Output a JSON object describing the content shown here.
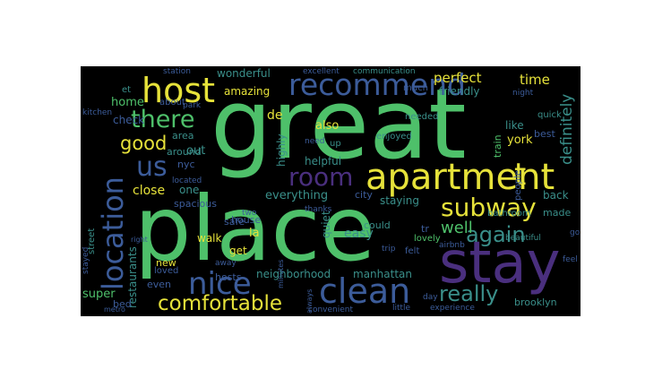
{
  "image": {
    "type": "word-cloud",
    "background": "#000000",
    "palette": [
      "#4ec06a",
      "#e6e23a",
      "#3c5c9a",
      "#4a2f7e",
      "#3a8f8a",
      "#6fbf6e"
    ],
    "words": [
      {
        "text": "great",
        "color": "#4ec06a"
      },
      {
        "text": "place",
        "color": "#4ec06a"
      },
      {
        "text": "stay",
        "color": "#4a2f7e"
      },
      {
        "text": "apartment",
        "color": "#e6e23a"
      },
      {
        "text": "host",
        "color": "#e6e23a"
      },
      {
        "text": "recommend",
        "color": "#3c5c9a"
      },
      {
        "text": "clean",
        "color": "#3c5c9a"
      },
      {
        "text": "location",
        "color": "#3c5c9a"
      },
      {
        "text": "nice",
        "color": "#3c5c9a"
      },
      {
        "text": "room",
        "color": "#4a2f7e"
      },
      {
        "text": "subway",
        "color": "#e6e23a"
      },
      {
        "text": "comfortable",
        "color": "#e6e23a"
      },
      {
        "text": "there",
        "color": "#4ec06a"
      },
      {
        "text": "really",
        "color": "#3a8f8a"
      },
      {
        "text": "again",
        "color": "#3a8f8a"
      },
      {
        "text": "us",
        "color": "#3c5c9a"
      },
      {
        "text": "good",
        "color": "#e6e23a"
      },
      {
        "text": "well",
        "color": "#4ec06a"
      },
      {
        "text": "definitely",
        "color": "#3a8f8a"
      },
      {
        "text": "perfect",
        "color": "#e6e23a"
      },
      {
        "text": "time",
        "color": "#e6e23a"
      },
      {
        "text": "home",
        "color": "#4ec06a"
      },
      {
        "text": "check",
        "color": "#3c5c9a"
      },
      {
        "text": "amazing",
        "color": "#e6e23a"
      },
      {
        "text": "wonderful",
        "color": "#3a8f8a"
      },
      {
        "text": "also",
        "color": "#e6e23a"
      },
      {
        "text": "highly",
        "color": "#3a8f8a"
      },
      {
        "text": "helpful",
        "color": "#3a8f8a"
      },
      {
        "text": "easy",
        "color": "#3a8f8a"
      },
      {
        "text": "everything",
        "color": "#3a8f8a"
      },
      {
        "text": "city",
        "color": "#3c5c9a"
      },
      {
        "text": "staying",
        "color": "#3a8f8a"
      },
      {
        "text": "close",
        "color": "#e6e23a"
      },
      {
        "text": "one",
        "color": "#3a8f8a"
      },
      {
        "text": "spacious",
        "color": "#3c5c9a"
      },
      {
        "text": "walk",
        "color": "#e6e23a"
      },
      {
        "text": "safe",
        "color": "#3c5c9a"
      },
      {
        "text": "house",
        "color": "#3c5c9a"
      },
      {
        "text": "la",
        "color": "#e6e23a"
      },
      {
        "text": "quiet",
        "color": "#3a8f8a"
      },
      {
        "text": "neighborhood",
        "color": "#3a8f8a"
      },
      {
        "text": "manhattan",
        "color": "#3a8f8a"
      },
      {
        "text": "brooklyn",
        "color": "#3a8f8a"
      },
      {
        "text": "super",
        "color": "#4ec06a"
      },
      {
        "text": "restaurants",
        "color": "#3a8f8a"
      },
      {
        "text": "hosts",
        "color": "#3c5c9a"
      },
      {
        "text": "get",
        "color": "#e6e23a"
      },
      {
        "text": "even",
        "color": "#3c5c9a"
      },
      {
        "text": "loved",
        "color": "#3c5c9a"
      },
      {
        "text": "bed",
        "color": "#3c5c9a"
      },
      {
        "text": "made",
        "color": "#3a8f8a"
      },
      {
        "text": "back",
        "color": "#3a8f8a"
      },
      {
        "text": "bathroom",
        "color": "#3a8f8a"
      },
      {
        "text": "could",
        "color": "#3a8f8a"
      },
      {
        "text": "lovely",
        "color": "#4ec06a"
      },
      {
        "text": "felt",
        "color": "#3c5c9a"
      },
      {
        "text": "beautiful",
        "color": "#3a8f8a"
      },
      {
        "text": "york",
        "color": "#e6e23a"
      },
      {
        "text": "best",
        "color": "#3c5c9a"
      },
      {
        "text": "like",
        "color": "#3a8f8a"
      },
      {
        "text": "friendly",
        "color": "#3a8f8a"
      },
      {
        "text": "much",
        "color": "#3c5c9a"
      },
      {
        "text": "needed",
        "color": "#3a8f8a"
      },
      {
        "text": "enjoyed",
        "color": "#3a8f8a"
      },
      {
        "text": "excellent",
        "color": "#3c5c9a"
      },
      {
        "text": "communication",
        "color": "#3a8f8a"
      },
      {
        "text": "station",
        "color": "#3c5c9a"
      },
      {
        "text": "about",
        "color": "#3c5c9a"
      },
      {
        "text": "park",
        "color": "#3c5c9a"
      },
      {
        "text": "area",
        "color": "#3a8f8a"
      },
      {
        "text": "around",
        "color": "#3a8f8a"
      },
      {
        "text": "out",
        "color": "#3a8f8a"
      },
      {
        "text": "nyc",
        "color": "#3c5c9a"
      },
      {
        "text": "de",
        "color": "#e6e23a"
      },
      {
        "text": "need",
        "color": "#3c5c9a"
      },
      {
        "text": "up",
        "color": "#3a8f8a"
      },
      {
        "text": "et",
        "color": "#3a8f8a"
      },
      {
        "text": "kitchen",
        "color": "#3c5c9a"
      },
      {
        "text": "quick",
        "color": "#3a8f8a"
      },
      {
        "text": "night",
        "color": "#3c5c9a"
      },
      {
        "text": "train",
        "color": "#4ec06a"
      },
      {
        "text": "convenient",
        "color": "#3c5c9a"
      },
      {
        "text": "little",
        "color": "#3c5c9a"
      },
      {
        "text": "day",
        "color": "#3c5c9a"
      },
      {
        "text": "experience",
        "color": "#3c5c9a"
      },
      {
        "text": "always",
        "color": "#3c5c9a"
      },
      {
        "text": "minutes",
        "color": "#3c5c9a"
      },
      {
        "text": "airbnb",
        "color": "#3c5c9a"
      },
      {
        "text": "thanks",
        "color": "#3c5c9a"
      },
      {
        "text": "trip",
        "color": "#3c5c9a"
      },
      {
        "text": "tr",
        "color": "#3c5c9a"
      },
      {
        "text": "t",
        "color": "#e6e23a"
      },
      {
        "text": "street",
        "color": "#3a8f8a"
      },
      {
        "text": "stayed",
        "color": "#3c5c9a"
      },
      {
        "text": "metro",
        "color": "#3c5c9a"
      },
      {
        "text": "new",
        "color": "#e6e23a"
      },
      {
        "text": "located",
        "color": "#3c5c9a"
      },
      {
        "text": "feel",
        "color": "#3c5c9a"
      },
      {
        "text": "go",
        "color": "#3c5c9a"
      },
      {
        "text": "people",
        "color": "#3c5c9a"
      },
      {
        "text": "right",
        "color": "#3c5c9a"
      },
      {
        "text": "two",
        "color": "#3c5c9a"
      },
      {
        "text": "away",
        "color": "#3c5c9a"
      }
    ]
  }
}
